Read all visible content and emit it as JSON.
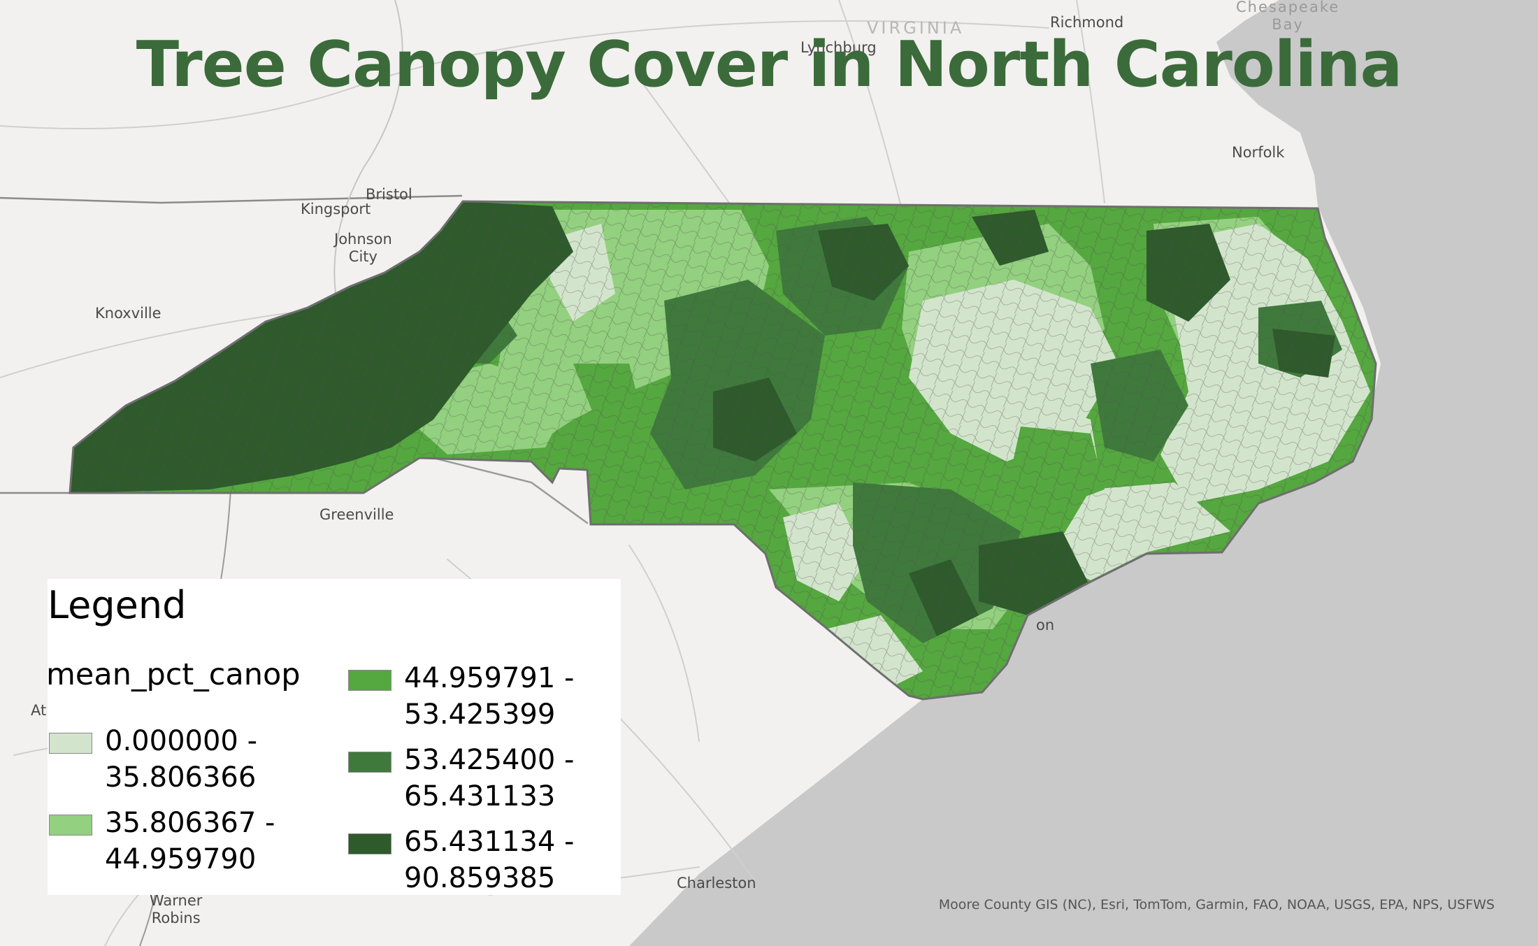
{
  "map": {
    "title": "Tree Canopy Cover in North Carolina",
    "attribution": "Moore County GIS (NC), Esri, TomTom, Garmin, FAO, NOAA, USGS, EPA, NPS, USFWS",
    "basemap": {
      "land": "#f2f1ef",
      "water": "#c9c9c9",
      "roads": "#c6c6c6",
      "borders": "#8a8a8a"
    },
    "places": [
      {
        "id": "virginia",
        "label": "VIRGINIA",
        "kind": "region"
      },
      {
        "id": "richmond",
        "label": "Richmond",
        "kind": "city"
      },
      {
        "id": "lynchburg",
        "label": "Lynchburg",
        "kind": "city"
      },
      {
        "id": "chesapeake-bay",
        "label": "Chesapeake\nBay",
        "kind": "water"
      },
      {
        "id": "norfolk",
        "label": "Norfolk",
        "kind": "city"
      },
      {
        "id": "bristol",
        "label": "Bristol",
        "kind": "city"
      },
      {
        "id": "kingsport",
        "label": "Kingsport",
        "kind": "city"
      },
      {
        "id": "johnson-city",
        "label": "Johnson\nCity",
        "kind": "city"
      },
      {
        "id": "knoxville",
        "label": "Knoxville",
        "kind": "city"
      },
      {
        "id": "greenville",
        "label": "Greenville",
        "kind": "city"
      },
      {
        "id": "charleston",
        "label": "Charleston",
        "kind": "city"
      },
      {
        "id": "warner-robins",
        "label": "Warner\nRobins",
        "kind": "city"
      },
      {
        "id": "atlanta-partial",
        "label": "At",
        "kind": "city"
      },
      {
        "id": "wilmington-partial",
        "label": "on",
        "kind": "city"
      }
    ]
  },
  "legend": {
    "title": "Legend",
    "field": "mean_pct_canop",
    "classes": [
      {
        "label_line1": "0.000000 -",
        "label_line2": "35.806366",
        "min": 0.0,
        "max": 35.806366,
        "color": "#d3e4cc"
      },
      {
        "label_line1": "35.806367 -",
        "label_line2": "44.959790",
        "min": 35.806367,
        "max": 44.95979,
        "color": "#93d07f"
      },
      {
        "label_line1": "44.959791 -",
        "label_line2": "53.425399",
        "min": 44.959791,
        "max": 53.425399,
        "color": "#55a73f"
      },
      {
        "label_line1": "53.425400 -",
        "label_line2": "65.431133",
        "min": 53.4254,
        "max": 65.431133,
        "color": "#3f7a3c"
      },
      {
        "label_line1": "65.431134 -",
        "label_line2": "90.859385",
        "min": 65.431134,
        "max": 90.859385,
        "color": "#2e5a2c"
      }
    ]
  }
}
